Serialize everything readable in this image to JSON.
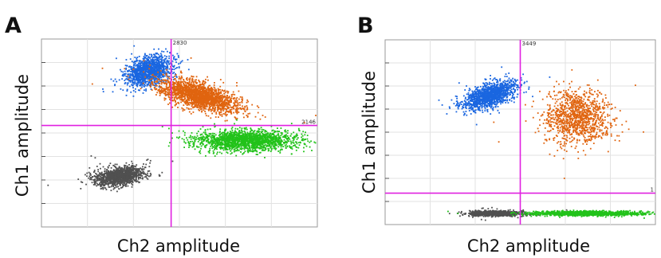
{
  "chart_data": [
    {
      "type": "scatter",
      "panel_label": "A",
      "xlabel": "Ch2 amplitude",
      "ylabel": "Ch1 amplitude",
      "xlim": [
        0,
        100
      ],
      "ylim": [
        0,
        100
      ],
      "grid": true,
      "threshold_x": {
        "value": 47,
        "label": "2830"
      },
      "threshold_y": {
        "value": 54,
        "label": "2146"
      },
      "clusters": [
        {
          "name": "blue",
          "color": "#1a66e0",
          "cx": 39,
          "cy": 83,
          "sx": 4.2,
          "sy": 4.0,
          "rho": 0.3,
          "n": 1300
        },
        {
          "name": "orange",
          "color": "#e0640f",
          "cx": 57,
          "cy": 70,
          "sx": 7.0,
          "sy": 4.5,
          "rho": -0.6,
          "n": 2000
        },
        {
          "name": "green",
          "color": "#22c21a",
          "cx": 74,
          "cy": 46,
          "sx": 9.0,
          "sy": 2.7,
          "rho": 0,
          "n": 1800
        },
        {
          "name": "gray",
          "color": "#505050",
          "cx": 28,
          "cy": 27,
          "sx": 4.5,
          "sy": 2.5,
          "rho": 0.3,
          "n": 1300
        }
      ]
    },
    {
      "type": "scatter",
      "panel_label": "B",
      "xlabel": "Ch2 amplitude",
      "ylabel": "Ch1 amplitude",
      "xlim": [
        0,
        100
      ],
      "ylim": [
        0,
        100
      ],
      "grid": true,
      "threshold_x": {
        "value": 50,
        "label": "3449"
      },
      "threshold_y": {
        "value": 17,
        "label": "1"
      },
      "clusters": [
        {
          "name": "blue",
          "color": "#1a66e0",
          "cx": 39,
          "cy": 70,
          "sx": 5.0,
          "sy": 4.0,
          "rho": 0.6,
          "n": 1300
        },
        {
          "name": "orange",
          "color": "#e0640f",
          "cx": 71,
          "cy": 58,
          "sx": 6.0,
          "sy": 7.0,
          "rho": 0,
          "n": 1100
        },
        {
          "name": "gray",
          "color": "#505050",
          "cx": 41,
          "cy": 6,
          "sx": 5.0,
          "sy": 0.7,
          "rho": 0,
          "n": 1100
        },
        {
          "name": "green",
          "color": "#22c21a",
          "cx": 74,
          "cy": 6,
          "sx": 10.0,
          "sy": 0.6,
          "rho": 0,
          "n": 1400
        }
      ]
    }
  ]
}
